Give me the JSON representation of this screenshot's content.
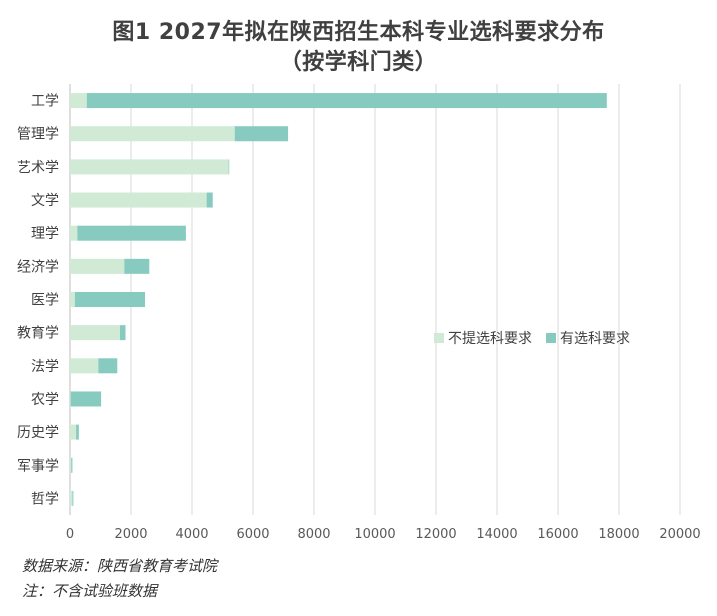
{
  "title_line1": "图1 2027年拟在陕西招生本科专业选科要求分布",
  "title_line2": "（按学科门类）",
  "note_source": "数据来源：陕西省教育考试院",
  "note_remark": "注：不含试验班数据",
  "colors": {
    "no_req": "#d0ead5",
    "req": "#86cac0",
    "grid": "#d9d9d9",
    "axis": "#bfbfbf"
  },
  "chart_data": {
    "type": "bar",
    "orientation": "horizontal",
    "stacked": true,
    "categories": [
      "工学",
      "管理学",
      "艺术学",
      "文学",
      "理学",
      "经济学",
      "医学",
      "教育学",
      "法学",
      "农学",
      "历史学",
      "军事学",
      "哲学"
    ],
    "series": [
      {
        "name": "不提选科要求",
        "color": "#d0ead5",
        "values": [
          550,
          5400,
          5200,
          4480,
          240,
          1780,
          160,
          1640,
          930,
          20,
          200,
          40,
          80
        ]
      },
      {
        "name": "有选科要求",
        "color": "#86cac0",
        "values": [
          17050,
          1750,
          20,
          200,
          3560,
          820,
          2300,
          180,
          620,
          1000,
          90,
          40,
          30
        ]
      }
    ],
    "xlim": [
      0,
      20000
    ],
    "xticks": [
      0,
      2000,
      4000,
      6000,
      8000,
      10000,
      12000,
      14000,
      16000,
      18000,
      20000
    ],
    "grid": true,
    "legend_position": "right"
  }
}
